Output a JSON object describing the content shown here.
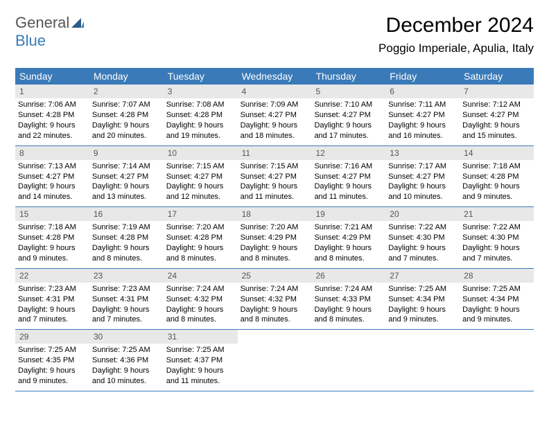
{
  "logo": {
    "text1": "General",
    "text2": "Blue"
  },
  "title": "December 2024",
  "location": "Poggio Imperiale, Apulia, Italy",
  "colors": {
    "header_bg": "#3a7ab8",
    "daynum_bg": "#e8e8e8",
    "border": "#3a7ab8"
  },
  "day_headers": [
    "Sunday",
    "Monday",
    "Tuesday",
    "Wednesday",
    "Thursday",
    "Friday",
    "Saturday"
  ],
  "weeks": [
    [
      {
        "day": "1",
        "sunrise": "Sunrise: 7:06 AM",
        "sunset": "Sunset: 4:28 PM",
        "daylight": "Daylight: 9 hours and 22 minutes."
      },
      {
        "day": "2",
        "sunrise": "Sunrise: 7:07 AM",
        "sunset": "Sunset: 4:28 PM",
        "daylight": "Daylight: 9 hours and 20 minutes."
      },
      {
        "day": "3",
        "sunrise": "Sunrise: 7:08 AM",
        "sunset": "Sunset: 4:28 PM",
        "daylight": "Daylight: 9 hours and 19 minutes."
      },
      {
        "day": "4",
        "sunrise": "Sunrise: 7:09 AM",
        "sunset": "Sunset: 4:27 PM",
        "daylight": "Daylight: 9 hours and 18 minutes."
      },
      {
        "day": "5",
        "sunrise": "Sunrise: 7:10 AM",
        "sunset": "Sunset: 4:27 PM",
        "daylight": "Daylight: 9 hours and 17 minutes."
      },
      {
        "day": "6",
        "sunrise": "Sunrise: 7:11 AM",
        "sunset": "Sunset: 4:27 PM",
        "daylight": "Daylight: 9 hours and 16 minutes."
      },
      {
        "day": "7",
        "sunrise": "Sunrise: 7:12 AM",
        "sunset": "Sunset: 4:27 PM",
        "daylight": "Daylight: 9 hours and 15 minutes."
      }
    ],
    [
      {
        "day": "8",
        "sunrise": "Sunrise: 7:13 AM",
        "sunset": "Sunset: 4:27 PM",
        "daylight": "Daylight: 9 hours and 14 minutes."
      },
      {
        "day": "9",
        "sunrise": "Sunrise: 7:14 AM",
        "sunset": "Sunset: 4:27 PM",
        "daylight": "Daylight: 9 hours and 13 minutes."
      },
      {
        "day": "10",
        "sunrise": "Sunrise: 7:15 AM",
        "sunset": "Sunset: 4:27 PM",
        "daylight": "Daylight: 9 hours and 12 minutes."
      },
      {
        "day": "11",
        "sunrise": "Sunrise: 7:15 AM",
        "sunset": "Sunset: 4:27 PM",
        "daylight": "Daylight: 9 hours and 11 minutes."
      },
      {
        "day": "12",
        "sunrise": "Sunrise: 7:16 AM",
        "sunset": "Sunset: 4:27 PM",
        "daylight": "Daylight: 9 hours and 11 minutes."
      },
      {
        "day": "13",
        "sunrise": "Sunrise: 7:17 AM",
        "sunset": "Sunset: 4:27 PM",
        "daylight": "Daylight: 9 hours and 10 minutes."
      },
      {
        "day": "14",
        "sunrise": "Sunrise: 7:18 AM",
        "sunset": "Sunset: 4:28 PM",
        "daylight": "Daylight: 9 hours and 9 minutes."
      }
    ],
    [
      {
        "day": "15",
        "sunrise": "Sunrise: 7:18 AM",
        "sunset": "Sunset: 4:28 PM",
        "daylight": "Daylight: 9 hours and 9 minutes."
      },
      {
        "day": "16",
        "sunrise": "Sunrise: 7:19 AM",
        "sunset": "Sunset: 4:28 PM",
        "daylight": "Daylight: 9 hours and 8 minutes."
      },
      {
        "day": "17",
        "sunrise": "Sunrise: 7:20 AM",
        "sunset": "Sunset: 4:28 PM",
        "daylight": "Daylight: 9 hours and 8 minutes."
      },
      {
        "day": "18",
        "sunrise": "Sunrise: 7:20 AM",
        "sunset": "Sunset: 4:29 PM",
        "daylight": "Daylight: 9 hours and 8 minutes."
      },
      {
        "day": "19",
        "sunrise": "Sunrise: 7:21 AM",
        "sunset": "Sunset: 4:29 PM",
        "daylight": "Daylight: 9 hours and 8 minutes."
      },
      {
        "day": "20",
        "sunrise": "Sunrise: 7:22 AM",
        "sunset": "Sunset: 4:30 PM",
        "daylight": "Daylight: 9 hours and 7 minutes."
      },
      {
        "day": "21",
        "sunrise": "Sunrise: 7:22 AM",
        "sunset": "Sunset: 4:30 PM",
        "daylight": "Daylight: 9 hours and 7 minutes."
      }
    ],
    [
      {
        "day": "22",
        "sunrise": "Sunrise: 7:23 AM",
        "sunset": "Sunset: 4:31 PM",
        "daylight": "Daylight: 9 hours and 7 minutes."
      },
      {
        "day": "23",
        "sunrise": "Sunrise: 7:23 AM",
        "sunset": "Sunset: 4:31 PM",
        "daylight": "Daylight: 9 hours and 7 minutes."
      },
      {
        "day": "24",
        "sunrise": "Sunrise: 7:24 AM",
        "sunset": "Sunset: 4:32 PM",
        "daylight": "Daylight: 9 hours and 8 minutes."
      },
      {
        "day": "25",
        "sunrise": "Sunrise: 7:24 AM",
        "sunset": "Sunset: 4:32 PM",
        "daylight": "Daylight: 9 hours and 8 minutes."
      },
      {
        "day": "26",
        "sunrise": "Sunrise: 7:24 AM",
        "sunset": "Sunset: 4:33 PM",
        "daylight": "Daylight: 9 hours and 8 minutes."
      },
      {
        "day": "27",
        "sunrise": "Sunrise: 7:25 AM",
        "sunset": "Sunset: 4:34 PM",
        "daylight": "Daylight: 9 hours and 9 minutes."
      },
      {
        "day": "28",
        "sunrise": "Sunrise: 7:25 AM",
        "sunset": "Sunset: 4:34 PM",
        "daylight": "Daylight: 9 hours and 9 minutes."
      }
    ],
    [
      {
        "day": "29",
        "sunrise": "Sunrise: 7:25 AM",
        "sunset": "Sunset: 4:35 PM",
        "daylight": "Daylight: 9 hours and 9 minutes."
      },
      {
        "day": "30",
        "sunrise": "Sunrise: 7:25 AM",
        "sunset": "Sunset: 4:36 PM",
        "daylight": "Daylight: 9 hours and 10 minutes."
      },
      {
        "day": "31",
        "sunrise": "Sunrise: 7:25 AM",
        "sunset": "Sunset: 4:37 PM",
        "daylight": "Daylight: 9 hours and 11 minutes."
      },
      {
        "empty": true
      },
      {
        "empty": true
      },
      {
        "empty": true
      },
      {
        "empty": true
      }
    ]
  ]
}
